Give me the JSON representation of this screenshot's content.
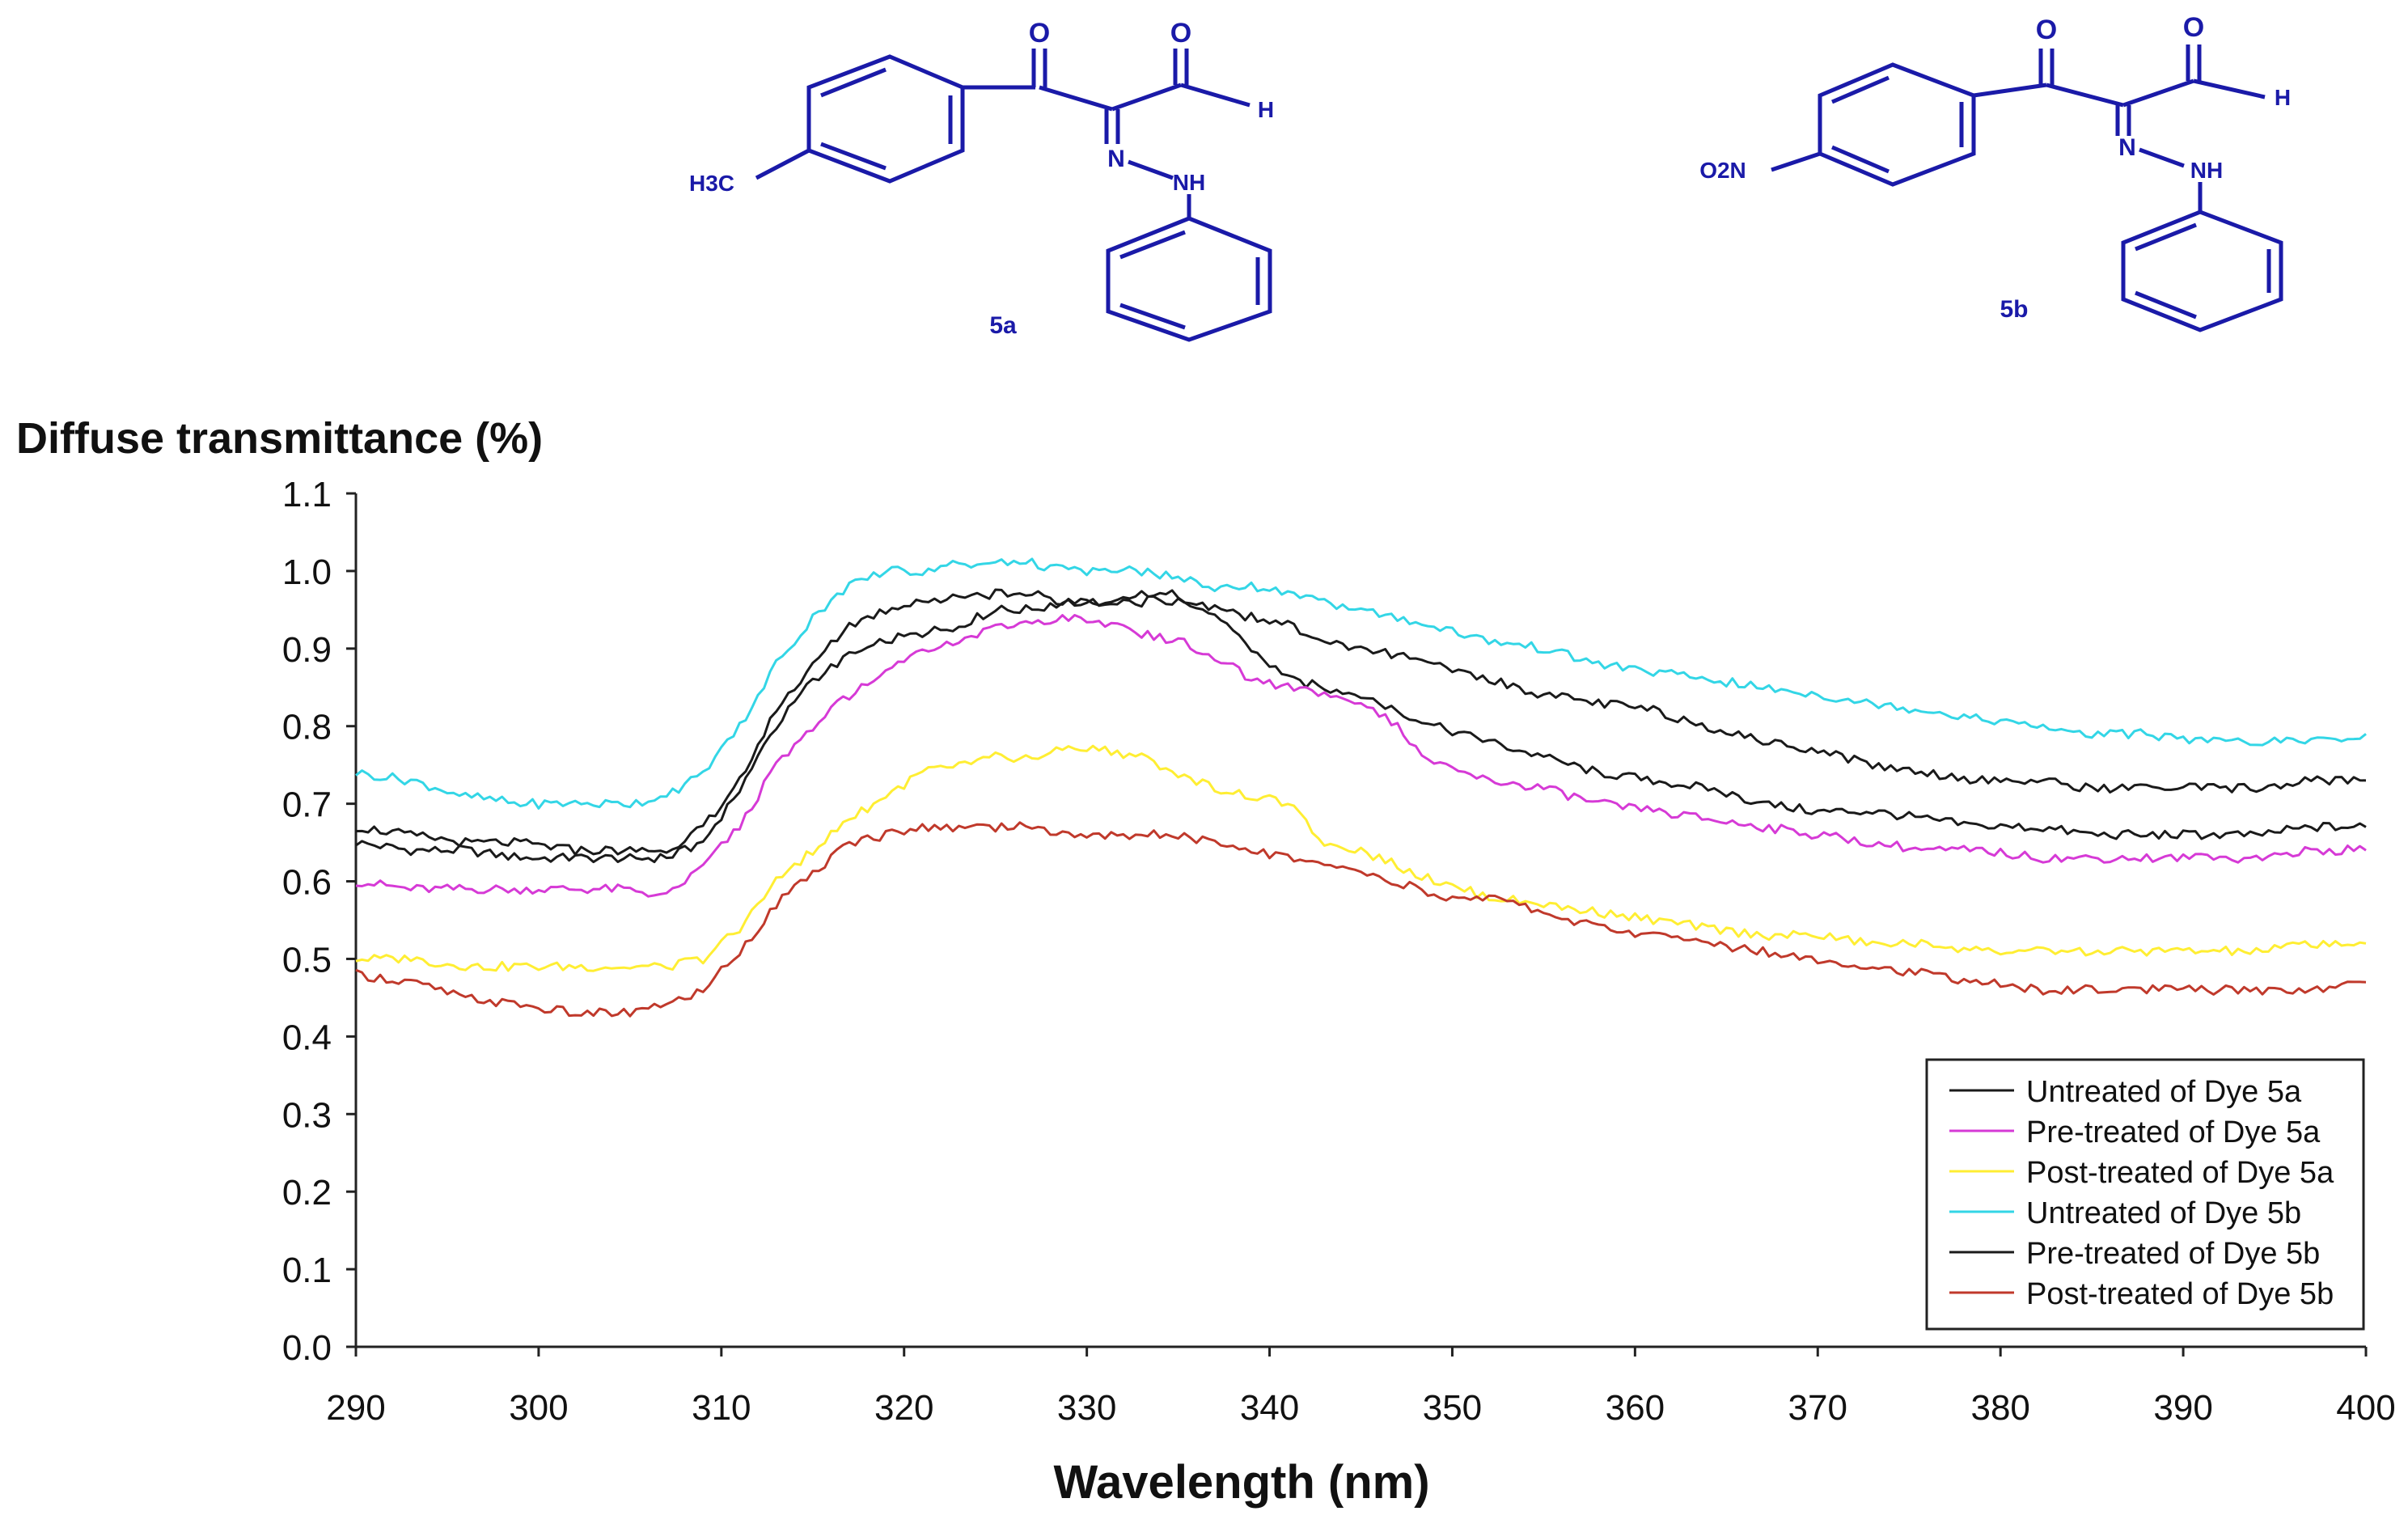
{
  "structures": {
    "left": {
      "compound_label": "5a",
      "substituent": "H3C",
      "carbonyl_o1": "O",
      "carbonyl_o2": "O",
      "aldehyde_h": "H",
      "azo_n": "N",
      "nh": "NH"
    },
    "right": {
      "compound_label": "5b",
      "substituent": "O2N",
      "carbonyl_o1": "O",
      "carbonyl_o2": "O",
      "aldehyde_h": "H",
      "azo_n": "N",
      "nh": "NH"
    }
  },
  "chart_data": {
    "type": "line",
    "title": "",
    "ylabel": "Diffuse transmittance (%)",
    "xlabel": "Wavelength (nm)",
    "xlim": [
      290,
      400
    ],
    "ylim": [
      0.0,
      1.1
    ],
    "x_ticks": [
      290,
      300,
      310,
      320,
      330,
      340,
      350,
      360,
      370,
      380,
      390,
      400
    ],
    "y_ticks": [
      0.0,
      0.1,
      0.2,
      0.3,
      0.4,
      0.5,
      0.6,
      0.7,
      0.8,
      0.9,
      1.0,
      1.1
    ],
    "x_tick_labels": [
      "290",
      "300",
      "310",
      "320",
      "330",
      "340",
      "350",
      "360",
      "370",
      "380",
      "390",
      "400"
    ],
    "y_tick_labels": [
      "0.0",
      "0.1",
      "0.2",
      "0.3",
      "0.4",
      "0.5",
      "0.6",
      "0.7",
      "0.8",
      "0.9",
      "1.0",
      "1.1"
    ],
    "grid": false,
    "legend_position": "bottom-right",
    "series": [
      {
        "name": "Untreated of Dye 5a",
        "color": "#1a1a1a",
        "x": [
          290,
          293,
          296,
          299,
          302,
          305,
          307,
          309,
          311,
          313,
          315,
          317,
          319,
          321,
          323,
          325,
          327,
          329,
          331,
          333,
          334,
          335,
          337,
          339,
          341,
          343,
          345,
          347,
          349,
          352,
          355,
          358,
          361,
          364,
          367,
          370,
          373,
          376,
          379,
          382,
          385,
          388,
          391,
          394,
          397,
          400
        ],
        "y": [
          0.65,
          0.64,
          0.64,
          0.63,
          0.63,
          0.63,
          0.63,
          0.65,
          0.72,
          0.8,
          0.86,
          0.89,
          0.91,
          0.92,
          0.93,
          0.95,
          0.95,
          0.96,
          0.96,
          0.96,
          0.97,
          0.97,
          0.94,
          0.9,
          0.86,
          0.85,
          0.84,
          0.82,
          0.8,
          0.78,
          0.76,
          0.74,
          0.73,
          0.72,
          0.7,
          0.69,
          0.69,
          0.68,
          0.67,
          0.67,
          0.66,
          0.66,
          0.66,
          0.66,
          0.67,
          0.67
        ]
      },
      {
        "name": "Pre-treated of Dye 5a",
        "color": "#d63ad6",
        "x": [
          290,
          293,
          296,
          299,
          302,
          305,
          307,
          309,
          311,
          313,
          315,
          317,
          319,
          321,
          323,
          325,
          327,
          329,
          331,
          333,
          335,
          337,
          339,
          341,
          343,
          345,
          347,
          349,
          352,
          355,
          358,
          361,
          364,
          367,
          370,
          373,
          376,
          379,
          382,
          385,
          388,
          391,
          394,
          397,
          400
        ],
        "y": [
          0.6,
          0.59,
          0.59,
          0.59,
          0.59,
          0.59,
          0.58,
          0.62,
          0.67,
          0.75,
          0.8,
          0.84,
          0.87,
          0.9,
          0.91,
          0.93,
          0.93,
          0.94,
          0.93,
          0.92,
          0.91,
          0.89,
          0.86,
          0.85,
          0.84,
          0.83,
          0.8,
          0.75,
          0.73,
          0.72,
          0.7,
          0.69,
          0.68,
          0.67,
          0.66,
          0.65,
          0.64,
          0.64,
          0.63,
          0.63,
          0.63,
          0.63,
          0.63,
          0.64,
          0.64
        ]
      },
      {
        "name": "Post-treated of Dye 5a",
        "color": "#ffee33",
        "x": [
          290,
          293,
          296,
          299,
          302,
          305,
          307,
          309,
          311,
          313,
          315,
          317,
          319,
          321,
          323,
          325,
          327,
          329,
          331,
          333,
          335,
          337,
          339,
          341,
          343,
          345,
          347,
          349,
          352,
          355,
          358,
          361,
          364,
          367,
          370,
          373,
          376,
          379,
          382,
          385,
          388,
          391,
          394,
          397,
          400
        ],
        "y": [
          0.5,
          0.5,
          0.49,
          0.49,
          0.49,
          0.49,
          0.49,
          0.5,
          0.54,
          0.6,
          0.64,
          0.68,
          0.71,
          0.74,
          0.75,
          0.76,
          0.76,
          0.77,
          0.77,
          0.76,
          0.74,
          0.72,
          0.71,
          0.7,
          0.65,
          0.64,
          0.62,
          0.6,
          0.58,
          0.57,
          0.56,
          0.55,
          0.54,
          0.53,
          0.53,
          0.52,
          0.52,
          0.51,
          0.51,
          0.51,
          0.51,
          0.51,
          0.51,
          0.52,
          0.52
        ]
      },
      {
        "name": "Untreated of Dye 5b",
        "color": "#33d6e6",
        "x": [
          290,
          293,
          296,
          299,
          302,
          305,
          307,
          309,
          311,
          313,
          315,
          317,
          319,
          321,
          323,
          325,
          327,
          329,
          331,
          333,
          335,
          337,
          339,
          341,
          343,
          345,
          347,
          349,
          352,
          355,
          358,
          361,
          364,
          367,
          370,
          373,
          376,
          379,
          382,
          385,
          388,
          391,
          394,
          397,
          400
        ],
        "y": [
          0.74,
          0.73,
          0.71,
          0.7,
          0.7,
          0.7,
          0.71,
          0.74,
          0.8,
          0.88,
          0.94,
          0.98,
          1.0,
          1.0,
          1.01,
          1.01,
          1.01,
          1.0,
          1.0,
          1.0,
          0.99,
          0.98,
          0.98,
          0.97,
          0.96,
          0.95,
          0.94,
          0.93,
          0.91,
          0.9,
          0.88,
          0.87,
          0.86,
          0.85,
          0.84,
          0.83,
          0.82,
          0.81,
          0.8,
          0.79,
          0.79,
          0.78,
          0.78,
          0.78,
          0.79
        ]
      },
      {
        "name": "Pre-treated of Dye 5b",
        "color": "#1a1a1a",
        "x": [
          290,
          293,
          296,
          299,
          302,
          305,
          307,
          309,
          311,
          313,
          315,
          317,
          319,
          321,
          323,
          325,
          327,
          329,
          331,
          333,
          335,
          337,
          339,
          341,
          343,
          345,
          347,
          349,
          352,
          355,
          358,
          361,
          364,
          367,
          370,
          373,
          376,
          379,
          382,
          385,
          388,
          391,
          394,
          397,
          400
        ],
        "y": [
          0.67,
          0.66,
          0.65,
          0.65,
          0.64,
          0.64,
          0.64,
          0.67,
          0.73,
          0.82,
          0.88,
          0.93,
          0.95,
          0.96,
          0.97,
          0.97,
          0.97,
          0.96,
          0.96,
          0.97,
          0.96,
          0.95,
          0.94,
          0.93,
          0.91,
          0.9,
          0.89,
          0.88,
          0.86,
          0.84,
          0.83,
          0.82,
          0.8,
          0.78,
          0.77,
          0.75,
          0.74,
          0.73,
          0.73,
          0.72,
          0.72,
          0.72,
          0.72,
          0.73,
          0.73
        ]
      },
      {
        "name": "Post-treated of Dye 5b",
        "color": "#c0392b",
        "x": [
          290,
          293,
          296,
          299,
          302,
          305,
          307,
          309,
          311,
          313,
          315,
          317,
          319,
          321,
          323,
          325,
          327,
          329,
          331,
          333,
          335,
          337,
          339,
          341,
          343,
          345,
          347,
          349,
          352,
          355,
          358,
          361,
          364,
          367,
          370,
          373,
          376,
          379,
          382,
          385,
          388,
          391,
          394,
          397,
          400
        ],
        "y": [
          0.48,
          0.47,
          0.45,
          0.44,
          0.43,
          0.43,
          0.44,
          0.46,
          0.51,
          0.57,
          0.61,
          0.65,
          0.66,
          0.67,
          0.67,
          0.67,
          0.67,
          0.66,
          0.66,
          0.66,
          0.66,
          0.65,
          0.64,
          0.63,
          0.62,
          0.61,
          0.6,
          0.58,
          0.58,
          0.56,
          0.54,
          0.53,
          0.52,
          0.51,
          0.5,
          0.49,
          0.48,
          0.47,
          0.46,
          0.46,
          0.46,
          0.46,
          0.46,
          0.46,
          0.47
        ]
      }
    ]
  }
}
